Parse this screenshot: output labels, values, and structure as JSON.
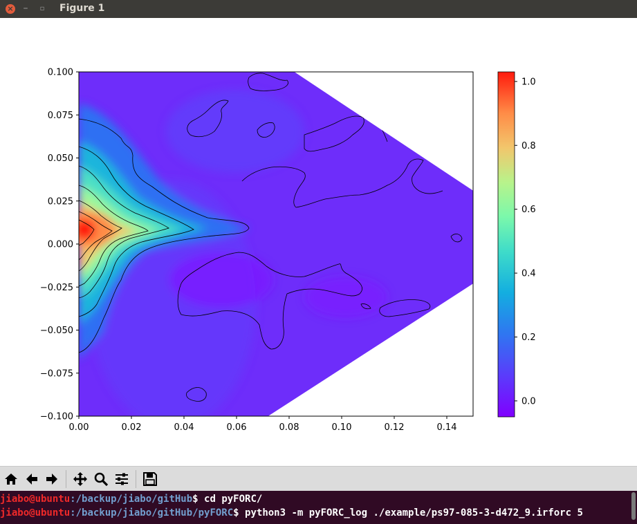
{
  "window": {
    "title": "Figure 1",
    "close_glyph": "×",
    "minimize_glyph": "–",
    "maximize_glyph": "▫"
  },
  "chart_data": {
    "type": "heatmap",
    "title": "",
    "xlabel": "",
    "ylabel": "",
    "xlim": [
      0.0,
      0.15
    ],
    "ylim": [
      -0.1,
      0.1
    ],
    "xticks": [
      "0.00",
      "0.02",
      "0.04",
      "0.06",
      "0.08",
      "0.10",
      "0.12",
      "0.14"
    ],
    "yticks": [
      "0.100",
      "0.075",
      "0.050",
      "0.025",
      "0.000",
      "−0.025",
      "−0.050",
      "−0.075",
      "−0.100"
    ],
    "colormap": "rainbow",
    "colorbar": {
      "range": [
        -0.05,
        1.03
      ],
      "ticks": [
        "1.0",
        "0.8",
        "0.6",
        "0.4",
        "0.2",
        "0.0"
      ]
    },
    "valid_region_vertices": [
      [
        0.0,
        0.1
      ],
      [
        0.082,
        0.1
      ],
      [
        0.15,
        0.031
      ],
      [
        0.15,
        -0.023
      ],
      [
        0.072,
        -0.1
      ],
      [
        0.0,
        -0.1
      ]
    ],
    "peak": {
      "x": 0.002,
      "y": 0.008,
      "value": 1.0
    },
    "background_level": 0.0,
    "contour_lines": true,
    "grid": false
  },
  "toolbar": {
    "buttons": [
      {
        "name": "home-button",
        "icon": "home-icon"
      },
      {
        "name": "back-button",
        "icon": "arrow-left-icon"
      },
      {
        "name": "forward-button",
        "icon": "arrow-right-icon"
      },
      {
        "name": "pan-button",
        "icon": "move-icon"
      },
      {
        "name": "zoom-button",
        "icon": "magnifier-icon"
      },
      {
        "name": "subplots-button",
        "icon": "sliders-icon"
      },
      {
        "name": "save-button",
        "icon": "floppy-disk-icon"
      }
    ]
  },
  "terminal": {
    "lines": [
      {
        "user": "jiabo@ubuntu",
        "path": ":/backup/jiabo/gitHub",
        "prompt": "$ ",
        "command": "cd pyFORC/"
      },
      {
        "user": "jiabo@ubuntu",
        "path": ":/backup/jiabo/gitHub/pyFORC",
        "prompt": "$ ",
        "command": "python3 -m pyFORC_log ./example/ps97-085-3-d472_9.irforc 5"
      }
    ]
  }
}
